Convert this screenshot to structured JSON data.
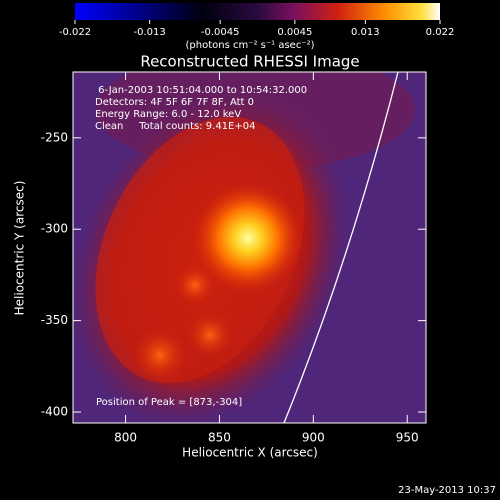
{
  "chart_data": {
    "type": "image",
    "title": "Reconstructed RHESSI Image",
    "colorbar": {
      "lim": [
        -0.022,
        0.022
      ],
      "ticks": [
        -0.022,
        -0.013,
        -0.0045,
        0.0045,
        0.013,
        0.022
      ],
      "label": "(photons cm⁻² s⁻¹ asec⁻²)"
    },
    "xlabel": "Heliocentric X (arcsec)",
    "ylabel": "Heliocentric Y (arcsec)",
    "xlim": [
      772,
      960
    ],
    "ylim": [
      -406,
      -214
    ],
    "xticks": [
      800,
      850,
      900,
      950
    ],
    "yticks": [
      -250,
      -300,
      -350,
      -400
    ],
    "annotations": [
      " 6-Jan-2003 10:51:04.000 to 10:54:32.000",
      "Detectors: 4F 5F 6F 7F 8F, Att 0",
      "Energy Range: 6.0 - 12.0 keV",
      "Clean     Total counts: 9.41E+04"
    ],
    "peak_label": "Position of Peak = [873,-304]",
    "footer": "23-May-2013 10:37"
  }
}
